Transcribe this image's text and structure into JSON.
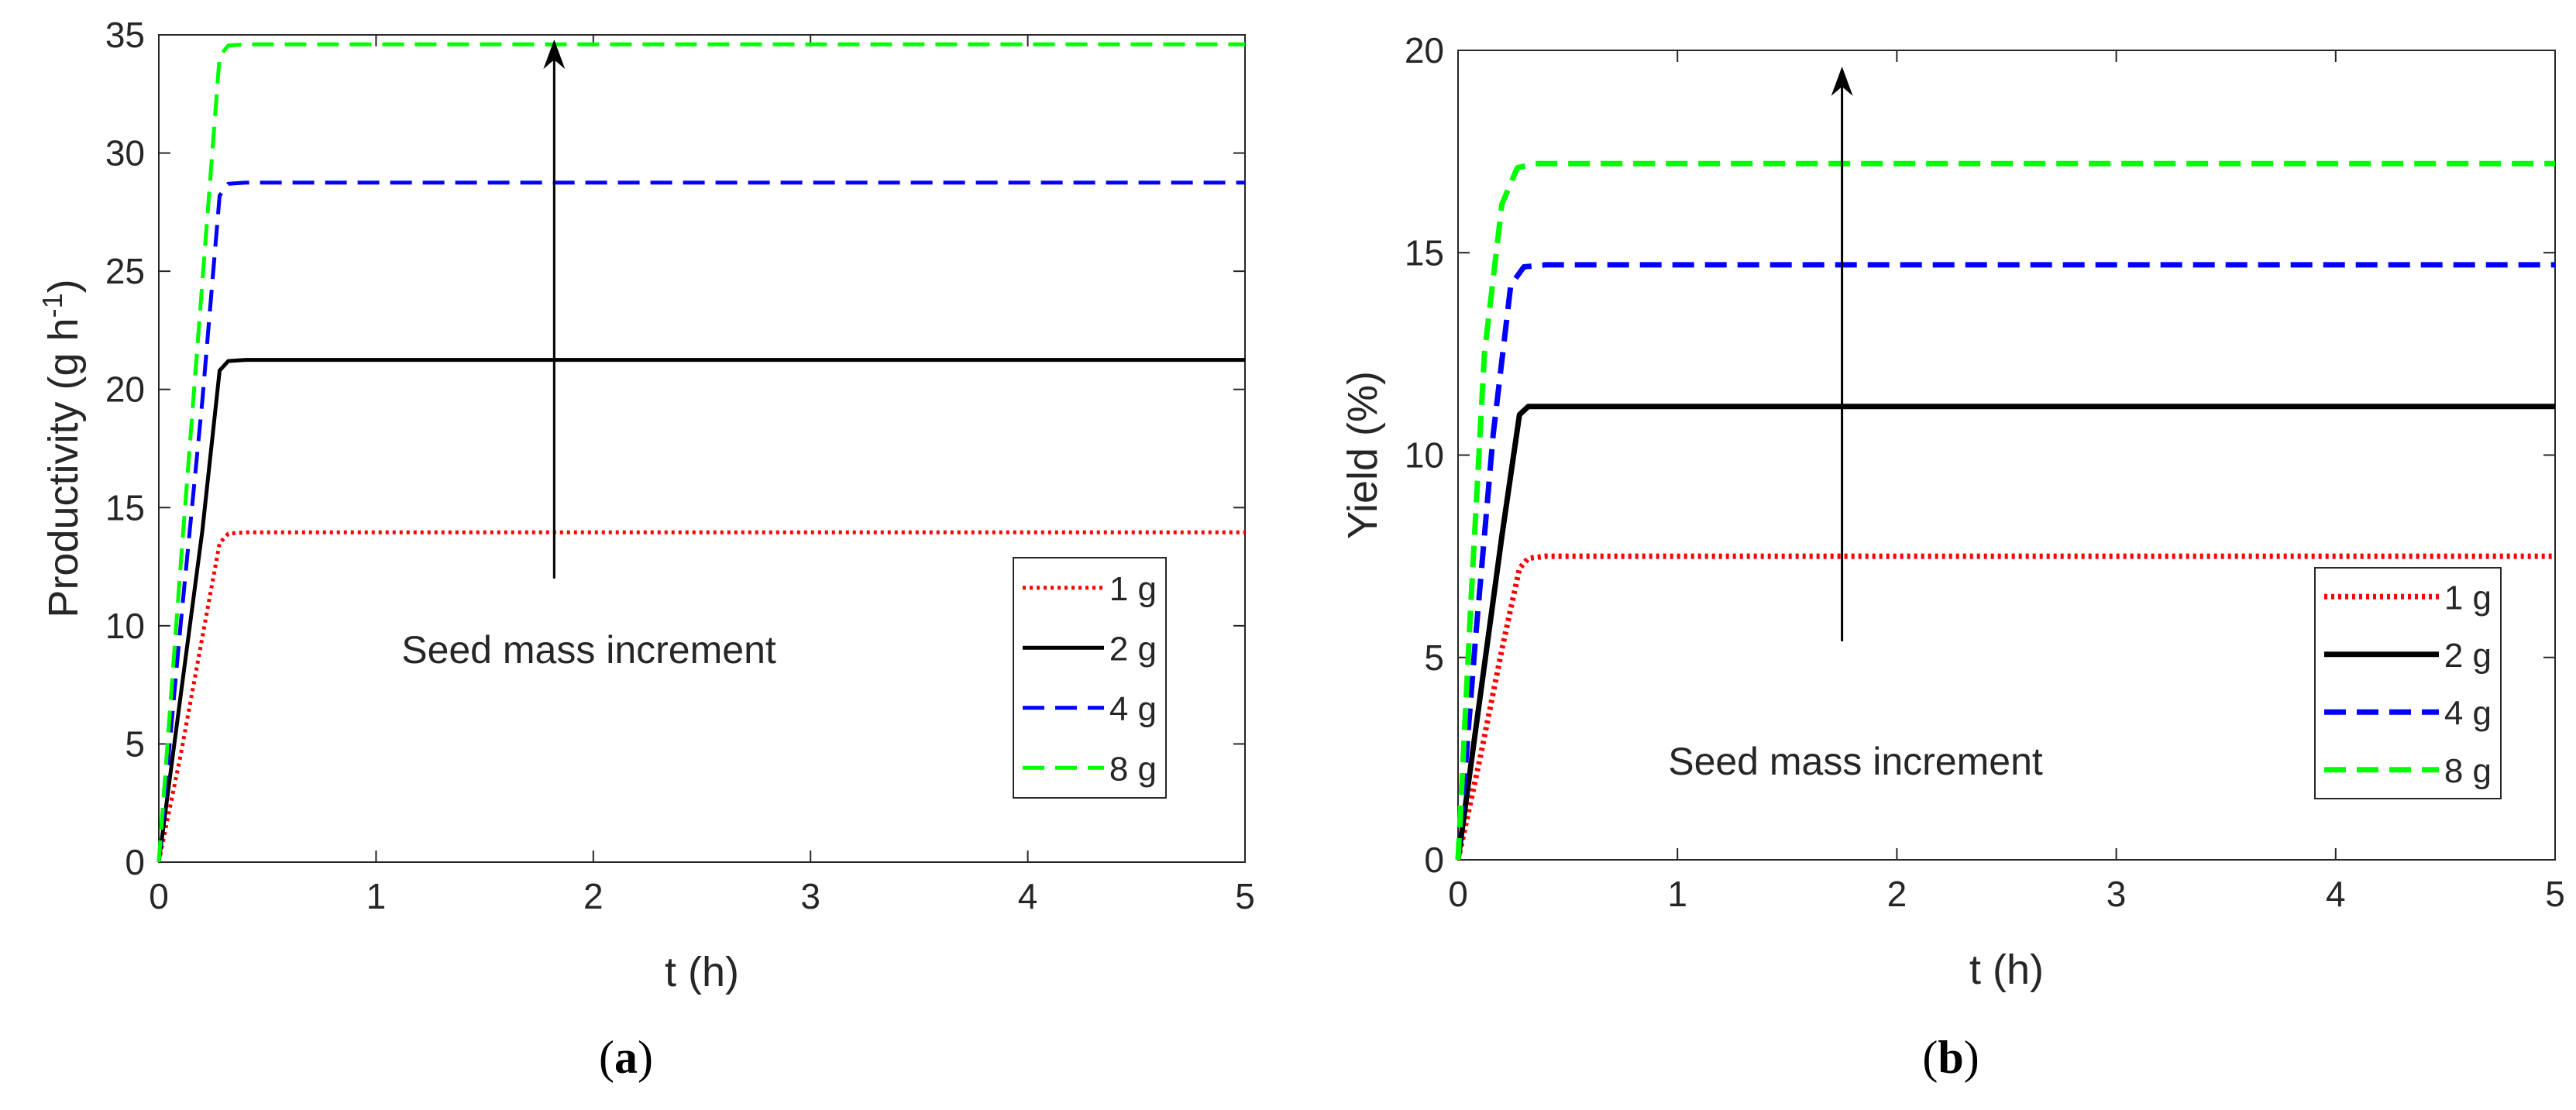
{
  "chart_data": [
    {
      "type": "line",
      "panel_label": "a",
      "title": "",
      "xlabel": "t (h)",
      "ylabel": "Productivity (g h",
      "ylabel_sup": "-1",
      "ylabel_close": ")",
      "xlim": [
        0,
        5
      ],
      "ylim": [
        0,
        35
      ],
      "xticks": [
        "0",
        "1",
        "2",
        "3",
        "4",
        "5"
      ],
      "yticks": [
        "0",
        "5",
        "10",
        "15",
        "20",
        "25",
        "30",
        "35"
      ],
      "grid": false,
      "legend_placement": "lower-right",
      "annotation": {
        "text": "Seed mass increment",
        "arrow_from": [
          1.82,
          12.0
        ],
        "arrow_to": [
          1.82,
          34.8
        ]
      },
      "series": [
        {
          "name": "1 g",
          "color": "#ff0000",
          "style": "dotted",
          "x": [
            0,
            0.1,
            0.2,
            0.28,
            0.32,
            0.4,
            1,
            2,
            3,
            4,
            5
          ],
          "y": [
            0,
            4.5,
            9.5,
            13.5,
            13.9,
            13.95,
            13.95,
            13.95,
            13.95,
            13.95,
            13.95
          ]
        },
        {
          "name": "2 g",
          "color": "#000000",
          "style": "solid",
          "x": [
            0,
            0.1,
            0.2,
            0.28,
            0.32,
            0.4,
            1,
            2,
            3,
            4,
            5
          ],
          "y": [
            0,
            7,
            14,
            20.8,
            21.2,
            21.25,
            21.25,
            21.25,
            21.25,
            21.25,
            21.25
          ]
        },
        {
          "name": "4 g",
          "color": "#0000ff",
          "style": "dashed",
          "x": [
            0,
            0.1,
            0.2,
            0.28,
            0.32,
            0.4,
            1,
            2,
            3,
            4,
            5
          ],
          "y": [
            0,
            10,
            19.5,
            28.2,
            28.7,
            28.75,
            28.75,
            28.75,
            28.75,
            28.75,
            28.75
          ]
        },
        {
          "name": "8 g",
          "color": "#00ff00",
          "style": "dashed",
          "x": [
            0,
            0.1,
            0.2,
            0.28,
            0.32,
            0.4,
            1,
            2,
            3,
            4,
            5
          ],
          "y": [
            0,
            12.5,
            24.5,
            34.1,
            34.55,
            34.6,
            34.6,
            34.6,
            34.6,
            34.6,
            34.6
          ]
        }
      ]
    },
    {
      "type": "line",
      "panel_label": "b",
      "title": "",
      "xlabel": "t (h)",
      "ylabel": "Yield (%)",
      "ylabel_sup": "",
      "ylabel_close": "",
      "xlim": [
        0,
        5
      ],
      "ylim": [
        0,
        20
      ],
      "xticks": [
        "0",
        "1",
        "2",
        "3",
        "4",
        "5"
      ],
      "yticks": [
        "0",
        "5",
        "10",
        "15",
        "20"
      ],
      "grid": false,
      "legend_placement": "lower-right",
      "annotation": {
        "text": "Seed mass increment",
        "arrow_from": [
          1.75,
          5.4
        ],
        "arrow_to": [
          1.75,
          19.6
        ]
      },
      "series": [
        {
          "name": "1 g",
          "color": "#ff0000",
          "style": "dotted",
          "x": [
            0,
            0.1,
            0.2,
            0.28,
            0.32,
            0.4,
            1,
            2,
            3,
            4,
            5
          ],
          "y": [
            0,
            2.5,
            5.2,
            7.2,
            7.45,
            7.5,
            7.5,
            7.5,
            7.5,
            7.5,
            7.5
          ]
        },
        {
          "name": "2 g",
          "color": "#000000",
          "style": "solid",
          "x": [
            0,
            0.1,
            0.2,
            0.28,
            0.32,
            0.4,
            1,
            2,
            3,
            4,
            5
          ],
          "y": [
            0,
            4,
            8,
            11,
            11.2,
            11.2,
            11.2,
            11.2,
            11.2,
            11.2,
            11.2
          ]
        },
        {
          "name": "4 g",
          "color": "#0000ff",
          "style": "dashed",
          "x": [
            0,
            0.08,
            0.16,
            0.24,
            0.3,
            0.4,
            1,
            2,
            3,
            4,
            5
          ],
          "y": [
            0,
            5.5,
            10.5,
            14.2,
            14.65,
            14.7,
            14.7,
            14.7,
            14.7,
            14.7,
            14.7
          ]
        },
        {
          "name": "8 g",
          "color": "#00ff00",
          "style": "dashed",
          "x": [
            0,
            0.06,
            0.12,
            0.2,
            0.27,
            0.35,
            1,
            2,
            3,
            4,
            5
          ],
          "y": [
            0,
            6.5,
            12.5,
            16.2,
            17.1,
            17.2,
            17.2,
            17.2,
            17.2,
            17.2,
            17.2
          ]
        }
      ]
    }
  ]
}
